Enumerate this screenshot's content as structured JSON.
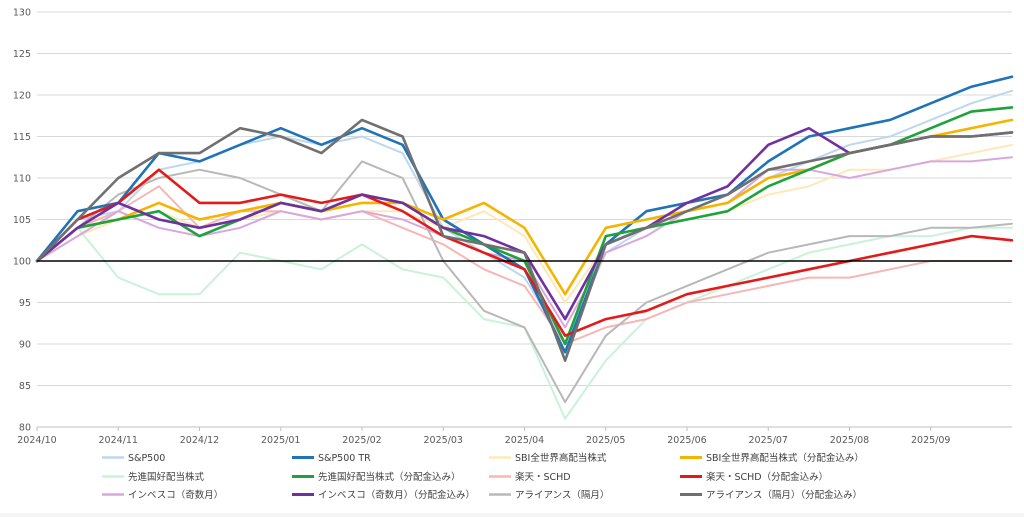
{
  "chart_data": {
    "type": "line",
    "title": "",
    "xlabel": "",
    "ylabel": "",
    "ylim": [
      80,
      130
    ],
    "y_ticks": [
      80,
      85,
      90,
      95,
      100,
      105,
      110,
      115,
      120,
      125,
      130
    ],
    "x_ticks": [
      "2024/10",
      "2024/11",
      "2024/12",
      "2025/01",
      "2025/02",
      "2025/03",
      "2025/04",
      "2025/05",
      "2025/06",
      "2025/07",
      "2025/08",
      "2025/09"
    ],
    "grid": "horizontal",
    "reference_line": 100,
    "legend_position": "bottom",
    "x": [
      "2024/10",
      "2024/10 mid",
      "2024/11",
      "2024/11 mid",
      "2024/12",
      "2024/12 mid",
      "2025/01",
      "2025/01 mid",
      "2025/02",
      "2025/02 mid",
      "2025/03",
      "2025/03 mid",
      "2025/04",
      "2025/04 mid",
      "2025/05",
      "2025/05 mid",
      "2025/06",
      "2025/06 mid",
      "2025/07",
      "2025/07 mid",
      "2025/08",
      "2025/08 mid",
      "2025/09",
      "2025/09 mid",
      "2025/09 end"
    ],
    "series": [
      {
        "name": "S&P500",
        "color": "#bdd7ee",
        "width": 2,
        "values": [
          100,
          105,
          106,
          111,
          112,
          114,
          115,
          114,
          115,
          113,
          104,
          101,
          98,
          90,
          101,
          104,
          106,
          107,
          110,
          112,
          114,
          115,
          117,
          119,
          120.5
        ]
      },
      {
        "name": "S&P500 TR",
        "color": "#1f73b7",
        "width": 2.6,
        "values": [
          100,
          106,
          107,
          113,
          112,
          114,
          116,
          114,
          116,
          114,
          105,
          102,
          99,
          89,
          102,
          106,
          107,
          108,
          112,
          115,
          116,
          117,
          119,
          121,
          122.2
        ]
      },
      {
        "name": "SBI全世界高配当株式",
        "color": "#fde9b8",
        "width": 2,
        "values": [
          100,
          103,
          105,
          106,
          104,
          105,
          106,
          105,
          106,
          106,
          104,
          106,
          103,
          95,
          102,
          104,
          105,
          106,
          108,
          109,
          111,
          111,
          112,
          113,
          114
        ]
      },
      {
        "name": "SBI全世界高配当株式（分配金込み）",
        "color": "#f5b400",
        "width": 2.6,
        "values": [
          100,
          104,
          105,
          107,
          105,
          106,
          107,
          106,
          107,
          107,
          105,
          107,
          104,
          96,
          104,
          105,
          106,
          107,
          110,
          111,
          113,
          114,
          115,
          116,
          117
        ]
      },
      {
        "name": "先進国好配当株式",
        "color": "#c9f2d9",
        "width": 2,
        "values": [
          100,
          104,
          98,
          96,
          96,
          101,
          100,
          99,
          102,
          99,
          98,
          93,
          92,
          81,
          88,
          93,
          95,
          97,
          99,
          101,
          102,
          103,
          103,
          104,
          104
        ]
      },
      {
        "name": "先進国好配当株式（分配金込み）",
        "color": "#1ea33c",
        "width": 2.6,
        "values": [
          100,
          104,
          105,
          106,
          103,
          105,
          107,
          106,
          108,
          107,
          104,
          102,
          100,
          90,
          103,
          104,
          105,
          106,
          109,
          111,
          113,
          114,
          116,
          118,
          118.5
        ]
      },
      {
        "name": "楽天・SCHD",
        "color": "#f7b6b6",
        "width": 2,
        "values": [
          100,
          104,
          106,
          109,
          104,
          106,
          106,
          105,
          106,
          104,
          102,
          99,
          97,
          90,
          92,
          93,
          95,
          96,
          97,
          98,
          98,
          99,
          100,
          100,
          100
        ]
      },
      {
        "name": "楽天・SCHD（分配金込み）",
        "color": "#e41a1a",
        "width": 2.6,
        "values": [
          100,
          105,
          107,
          111,
          107,
          107,
          108,
          107,
          108,
          106,
          103,
          101,
          99,
          91,
          93,
          94,
          96,
          97,
          98,
          99,
          100,
          101,
          102,
          103,
          102.5
        ]
      },
      {
        "name": "インベスコ（奇数月）",
        "color": "#d8a7dd",
        "width": 2,
        "values": [
          100,
          103,
          106,
          104,
          103,
          104,
          106,
          105,
          106,
          105,
          103,
          101,
          100,
          92,
          101,
          103,
          106,
          107,
          111,
          111,
          110,
          111,
          112,
          112,
          112.5
        ]
      },
      {
        "name": "インベスコ（奇数月）（分配金込み）",
        "color": "#7030a0",
        "width": 2.6,
        "values": [
          100,
          104,
          107,
          105,
          104,
          105,
          107,
          106,
          108,
          107,
          104,
          103,
          101,
          93,
          102,
          104,
          107,
          109,
          114,
          116,
          113,
          114,
          115,
          115,
          115.5
        ]
      },
      {
        "name": "アライアンス（隔月）",
        "color": "#b8b8b8",
        "width": 2,
        "values": [
          100,
          104,
          108,
          110,
          111,
          110,
          108,
          106,
          112,
          110,
          100,
          94,
          92,
          83,
          91,
          95,
          97,
          99,
          101,
          102,
          103,
          103,
          104,
          104,
          104.5
        ]
      },
      {
        "name": "アライアンス（隔月）（分配金込み）",
        "color": "#707070",
        "width": 2.6,
        "values": [
          100,
          105,
          110,
          113,
          113,
          116,
          115,
          113,
          117,
          115,
          103,
          102,
          101,
          88,
          102,
          104,
          106,
          108,
          111,
          112,
          113,
          114,
          115,
          115,
          115.5
        ]
      }
    ]
  }
}
